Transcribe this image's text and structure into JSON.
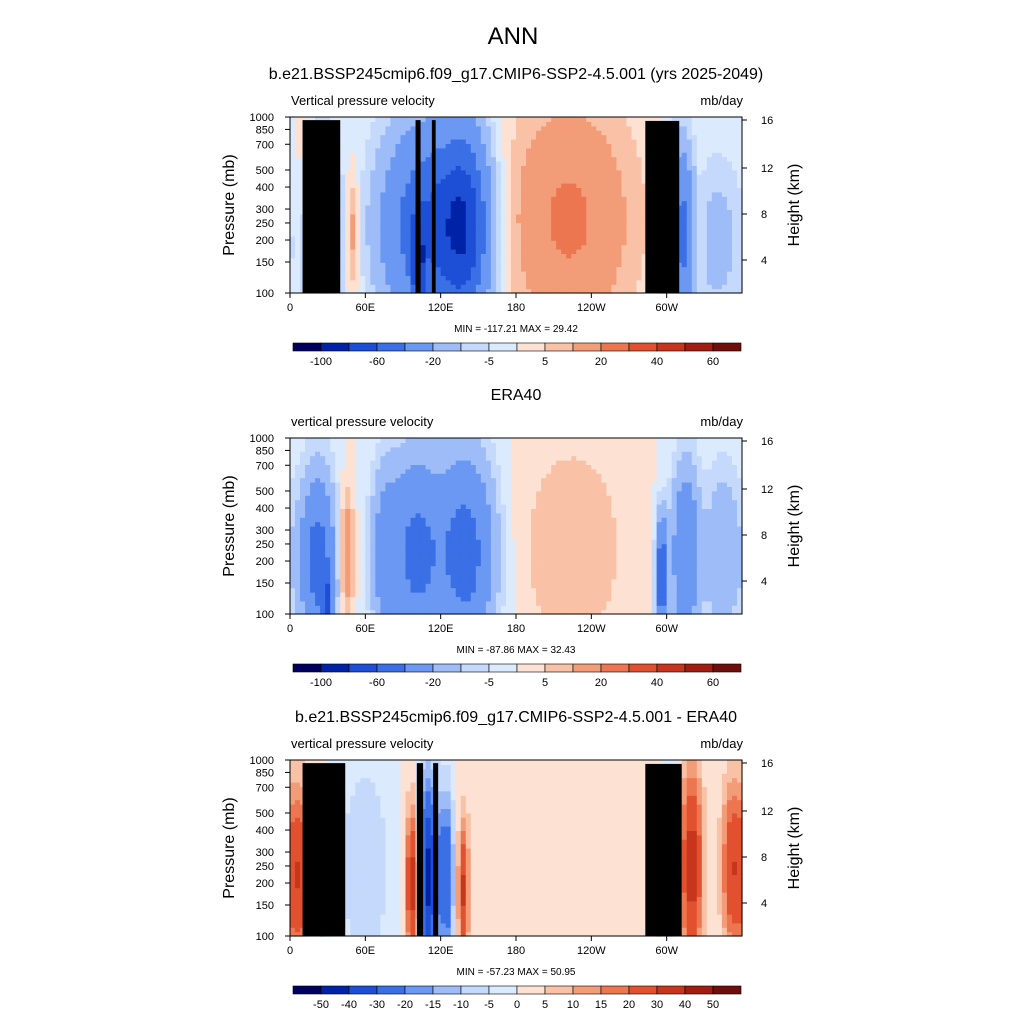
{
  "figure_title": "ANN",
  "panels": [
    {
      "title": "b.e21.BSSP245cmip6.f09_g17.CMIP6-SSP2-4.5.001 (yrs 2025-2049)",
      "left_label": "Vertical pressure velocity",
      "right_label": "mb/day",
      "stats": "MIN = -117.21  MAX =  29.42"
    },
    {
      "title": "ERA40",
      "left_label": "vertical pressure velocity",
      "right_label": "mb/day",
      "stats": "MIN = -87.86  MAX =  32.43"
    },
    {
      "title": "b.e21.BSSP245cmip6.f09_g17.CMIP6-SSP2-4.5.001 - ERA40",
      "left_label": "vertical pressure velocity",
      "right_label": "mb/day",
      "stats": "MIN = -57.23  MAX =  50.95"
    }
  ],
  "axes": {
    "ylabel": "Pressure (mb)",
    "y2label": "Height (km)",
    "xticks": [
      "0",
      "60E",
      "120E",
      "180",
      "120W",
      "60W"
    ],
    "yticks": [
      "100",
      "150",
      "200",
      "250",
      "300",
      "400",
      "500",
      "700",
      "850",
      "1000"
    ],
    "y2ticks": [
      "16",
      "12",
      "8",
      "4"
    ]
  },
  "colorbars": [
    {
      "labels": [
        "-100",
        "-60",
        "-20",
        "-5",
        "5",
        "20",
        "40",
        "60"
      ]
    },
    {
      "labels": [
        "-100",
        "-60",
        "-20",
        "-5",
        "5",
        "20",
        "40",
        "60"
      ]
    },
    {
      "labels": [
        "-50",
        "-40",
        "-30",
        "-20",
        "-15",
        "-10",
        "-5",
        "0",
        "5",
        "10",
        "15",
        "20",
        "30",
        "40",
        "50"
      ]
    }
  ],
  "colors": {
    "palette": [
      "#00005e",
      "#0022a6",
      "#1d4fd6",
      "#3a6fe6",
      "#6b98f2",
      "#9dbcf8",
      "#c4d9fb",
      "#dceafd",
      "#fde2d4",
      "#f9c1a6",
      "#f39c78",
      "#ec7650",
      "#e2512f",
      "#c8351d",
      "#a11d12",
      "#6e0f0b"
    ],
    "land": "#000000"
  },
  "chart_data": [
    {
      "type": "heatmap",
      "x_range_deg": [
        0,
        360
      ],
      "x_ticks_deg": [
        0,
        60,
        120,
        180,
        240,
        300
      ],
      "y_range_mb": [
        1000,
        100
      ],
      "y_scale": "log",
      "y_ticks_mb": [
        100,
        150,
        200,
        250,
        300,
        400,
        500,
        700,
        850,
        1000
      ],
      "y2_ticks_km": [
        16,
        12,
        8,
        4
      ],
      "contour_levels": [
        -120,
        -100,
        -80,
        -60,
        -40,
        -20,
        -10,
        -5,
        0,
        5,
        10,
        20,
        30,
        40,
        50,
        60
      ],
      "min": -117.21,
      "max": 29.42,
      "features": [
        {
          "lon": 26,
          "p": 500,
          "amp": -62,
          "wl": 8,
          "wp": 0.75
        },
        {
          "lon": 50,
          "p": 450,
          "amp": 16,
          "wl": 4,
          "wp": 0.55
        },
        {
          "lon": 110,
          "p": 420,
          "amp": -58,
          "wl": 26,
          "wp": 0.95
        },
        {
          "lon": 140,
          "p": 420,
          "amp": -55,
          "wl": 14,
          "wp": 0.9
        },
        {
          "lon": 102,
          "p": 700,
          "amp": -65,
          "wl": 3,
          "wp": 0.45
        },
        {
          "lon": 222,
          "p": 380,
          "amp": 22,
          "wl": 36,
          "wp": 1.1
        },
        {
          "lon": 297,
          "p": 550,
          "amp": -80,
          "wl": 3,
          "wp": 0.55
        },
        {
          "lon": 312,
          "p": 450,
          "amp": -45,
          "wl": 7,
          "wp": 0.8
        },
        {
          "lon": 340,
          "p": 500,
          "amp": -14,
          "wl": 16,
          "wp": 0.8
        },
        {
          "lon": 325,
          "p": 450,
          "amp": 9,
          "wl": 4,
          "wp": 0.6
        },
        {
          "lon": 12,
          "p": 300,
          "amp": 5,
          "wl": 6,
          "wp": 0.9
        }
      ],
      "land": [
        {
          "lon0": 10,
          "lon1": 40,
          "p": 960
        },
        {
          "lon0": 28,
          "lon1": 36,
          "p": 880
        },
        {
          "lon0": 100,
          "lon1": 104,
          "p": 960
        },
        {
          "lon0": 113,
          "lon1": 116,
          "p": 960
        },
        {
          "lon0": 283,
          "lon1": 310,
          "p": 950
        }
      ]
    },
    {
      "type": "heatmap",
      "x_range_deg": [
        0,
        360
      ],
      "x_ticks_deg": [
        0,
        60,
        120,
        180,
        240,
        300
      ],
      "y_range_mb": [
        1000,
        100
      ],
      "y_scale": "log",
      "y_ticks_mb": [
        100,
        150,
        200,
        250,
        300,
        400,
        500,
        700,
        850,
        1000
      ],
      "y2_ticks_km": [
        16,
        12,
        8,
        4
      ],
      "contour_levels": [
        -120,
        -100,
        -80,
        -60,
        -40,
        -20,
        -10,
        -5,
        0,
        5,
        10,
        20,
        30,
        40,
        50,
        60
      ],
      "min": -87.86,
      "max": 32.43,
      "features": [
        {
          "lon": 22,
          "p": 500,
          "amp": -50,
          "wl": 10,
          "wp": 0.8
        },
        {
          "lon": 45,
          "p": 450,
          "amp": 22,
          "wl": 4,
          "wp": 0.55
        },
        {
          "lon": 100,
          "p": 450,
          "amp": -45,
          "wl": 14,
          "wp": 0.9
        },
        {
          "lon": 140,
          "p": 450,
          "amp": -50,
          "wl": 16,
          "wp": 0.9
        },
        {
          "lon": 75,
          "p": 450,
          "amp": -25,
          "wl": 8,
          "wp": 0.8
        },
        {
          "lon": 225,
          "p": 420,
          "amp": 10,
          "wl": 30,
          "wp": 1.0
        },
        {
          "lon": 296,
          "p": 600,
          "amp": -65,
          "wl": 3,
          "wp": 0.5
        },
        {
          "lon": 315,
          "p": 450,
          "amp": -40,
          "wl": 8,
          "wp": 0.8
        },
        {
          "lon": 345,
          "p": 450,
          "amp": -20,
          "wl": 10,
          "wp": 0.8
        },
        {
          "lon": 30,
          "p": 900,
          "amp": -40,
          "wl": 3,
          "wp": 0.3
        }
      ],
      "land": []
    },
    {
      "type": "heatmap",
      "x_range_deg": [
        0,
        360
      ],
      "x_ticks_deg": [
        0,
        60,
        120,
        180,
        240,
        300
      ],
      "y_range_mb": [
        1000,
        100
      ],
      "y_scale": "log",
      "y_ticks_mb": [
        100,
        150,
        200,
        250,
        300,
        400,
        500,
        700,
        850,
        1000
      ],
      "y2_ticks_km": [
        16,
        12,
        8,
        4
      ],
      "contour_levels": [
        -60,
        -50,
        -40,
        -30,
        -20,
        -15,
        -10,
        -5,
        0,
        5,
        10,
        15,
        20,
        30,
        40,
        50
      ],
      "min": -57.23,
      "max": 50.95,
      "features": [
        {
          "lon": 8,
          "p": 450,
          "amp": 30,
          "wl": 8,
          "wp": 0.8
        },
        {
          "lon": 26,
          "p": 700,
          "amp": -35,
          "wl": 3,
          "wp": 0.5
        },
        {
          "lon": 98,
          "p": 500,
          "amp": 40,
          "wl": 4,
          "wp": 0.7
        },
        {
          "lon": 110,
          "p": 450,
          "amp": -45,
          "wl": 6,
          "wp": 0.9
        },
        {
          "lon": 125,
          "p": 450,
          "amp": -30,
          "wl": 4,
          "wp": 0.8
        },
        {
          "lon": 138,
          "p": 550,
          "amp": 30,
          "wl": 3,
          "wp": 0.6
        },
        {
          "lon": 295,
          "p": 600,
          "amp": 35,
          "wl": 3,
          "wp": 0.6
        },
        {
          "lon": 302,
          "p": 500,
          "amp": -40,
          "wl": 4,
          "wp": 0.8
        },
        {
          "lon": 320,
          "p": 400,
          "amp": 35,
          "wl": 6,
          "wp": 0.9
        },
        {
          "lon": 352,
          "p": 400,
          "amp": 25,
          "wl": 6,
          "wp": 0.8
        },
        {
          "lon": 210,
          "p": 300,
          "amp": 4,
          "wl": 60,
          "wp": 1.5
        },
        {
          "lon": 60,
          "p": 400,
          "amp": -10,
          "wl": 15,
          "wp": 1.0
        }
      ],
      "land": [
        {
          "lon0": 10,
          "lon1": 44,
          "p": 960
        },
        {
          "lon0": 30,
          "lon1": 36,
          "p": 880
        },
        {
          "lon0": 101,
          "lon1": 106,
          "p": 960
        },
        {
          "lon0": 114,
          "lon1": 118,
          "p": 960
        },
        {
          "lon0": 283,
          "lon1": 312,
          "p": 950
        }
      ]
    }
  ]
}
